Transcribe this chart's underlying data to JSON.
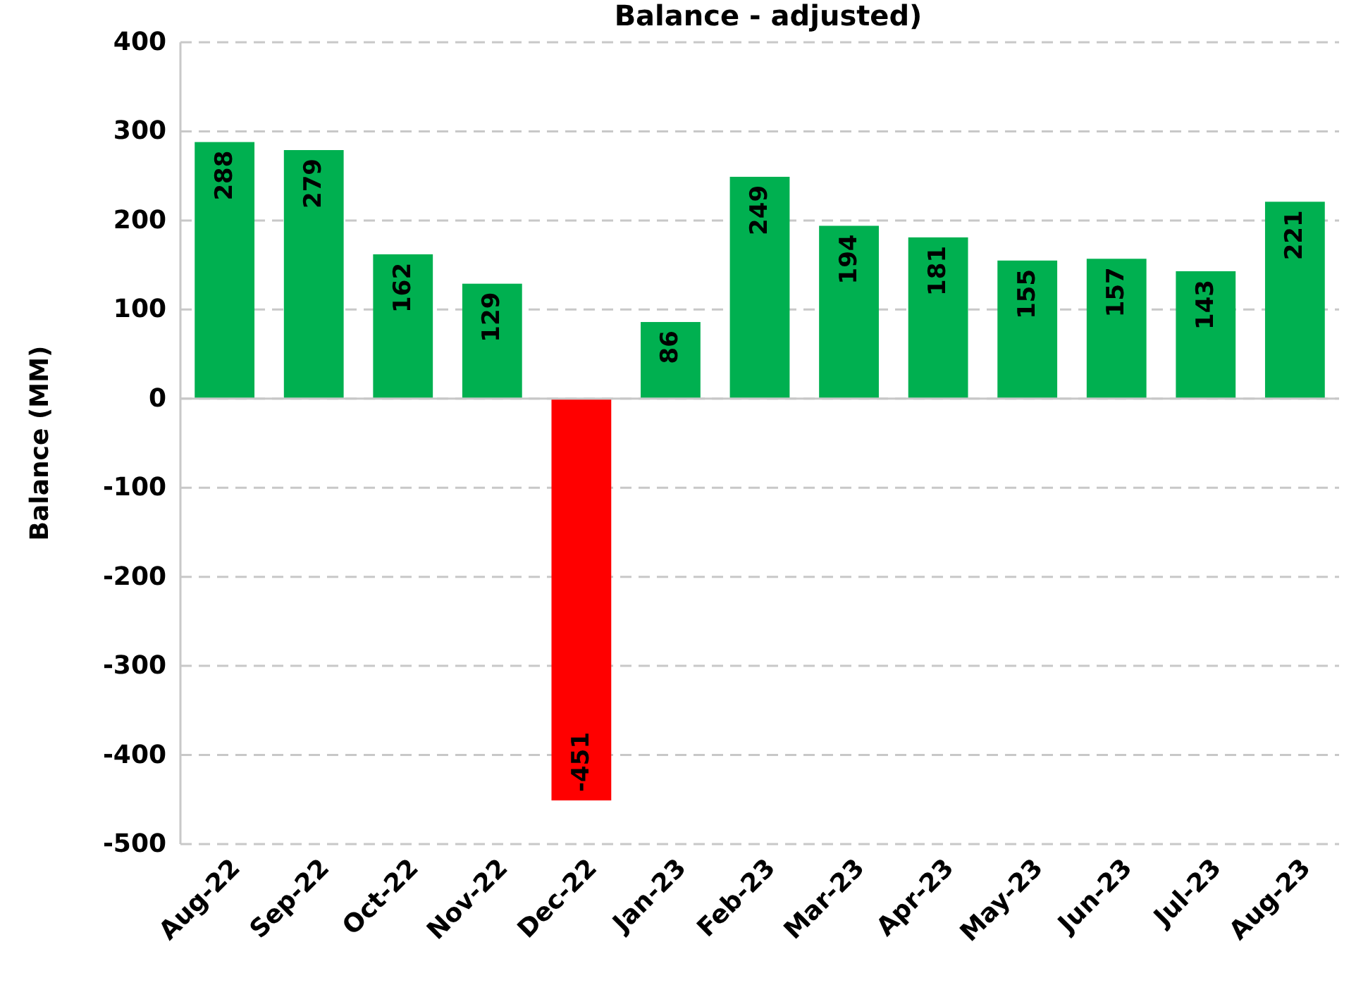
{
  "chart_data": {
    "type": "bar",
    "title": "Balance  - adjusted)",
    "ylabel": "Balance (MM)",
    "categories": [
      "Aug-22",
      "Sep-22",
      "Oct-22",
      "Nov-22",
      "Dec-22",
      "Jan-23",
      "Feb-23",
      "Mar-23",
      "Apr-23",
      "May-23",
      "Jun-23",
      "Jul-23",
      "Aug-23"
    ],
    "values": [
      288,
      279,
      162,
      129,
      -451,
      86,
      249,
      194,
      181,
      155,
      157,
      143,
      221
    ],
    "colors": [
      "#00b050",
      "#00b050",
      "#00b050",
      "#00b050",
      "#ff0000",
      "#00b050",
      "#00b050",
      "#00b050",
      "#00b050",
      "#00b050",
      "#00b050",
      "#00b050",
      "#00b050"
    ],
    "ylim": [
      -500,
      400
    ],
    "yticks": [
      -500,
      -400,
      -300,
      -200,
      -100,
      0,
      100,
      200,
      300,
      400
    ],
    "grid": "y",
    "data_labels": true
  }
}
